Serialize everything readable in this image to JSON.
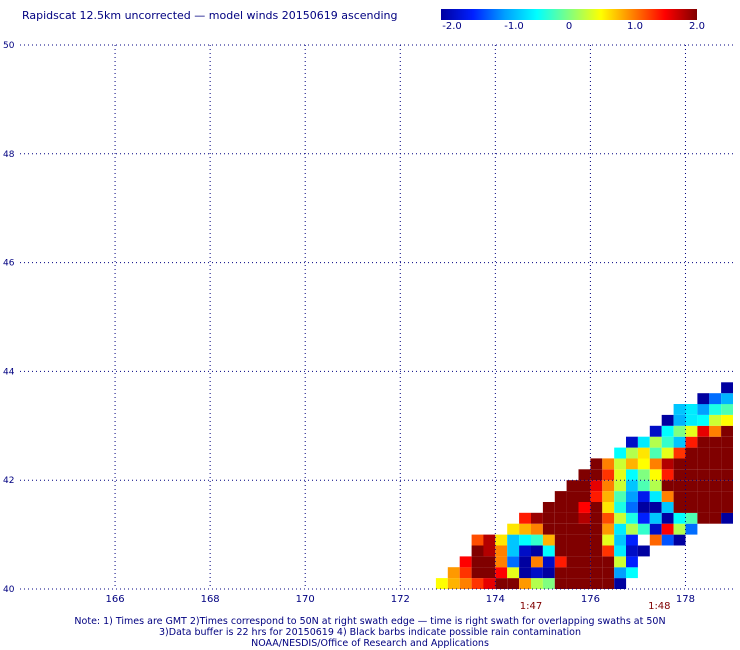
{
  "title": "Rapidscat 12.5km uncorrected — model winds 20150619 ascending",
  "colorbar": {
    "colors": [
      "#0000a0",
      "#0020ff",
      "#00a0ff",
      "#00ffff",
      "#80ff80",
      "#ffff00",
      "#ff8000",
      "#ff0000",
      "#800000"
    ],
    "ticks": [
      "-2.0",
      "-1.0",
      "0",
      "1.0",
      "2.0"
    ]
  },
  "chart_data": {
    "type": "heatmap",
    "title": "Rapidscat 12.5km uncorrected — model winds 20150619 ascending",
    "xlabel": "",
    "ylabel": "",
    "xlim": [
      164.0,
      179.0
    ],
    "ylim": [
      40.0,
      50.0
    ],
    "x_ticks": [
      "166",
      "168",
      "170",
      "172",
      "174",
      "176",
      "178"
    ],
    "y_ticks": [
      "40",
      "42",
      "44",
      "46",
      "48",
      "50"
    ],
    "grid": true,
    "color_range": [
      -2.0,
      2.0
    ],
    "time_labels": [
      {
        "lon": 174.75,
        "text": "1:47"
      },
      {
        "lon": 177.45,
        "text": "1:48"
      }
    ],
    "cells": [
      [
        172.75,
        40.0,
        0.5
      ],
      [
        173.0,
        40.0,
        0.8
      ],
      [
        173.25,
        40.0,
        1.0
      ],
      [
        173.5,
        40.0,
        1.3
      ],
      [
        173.75,
        40.0,
        1.6
      ],
      [
        174.0,
        40.0,
        2.0
      ],
      [
        174.25,
        40.0,
        2.0
      ],
      [
        174.5,
        40.0,
        0.9
      ],
      [
        174.75,
        40.0,
        0.2
      ],
      [
        175.0,
        40.0,
        0.0
      ],
      [
        175.25,
        40.0,
        2.0
      ],
      [
        175.5,
        40.0,
        2.0
      ],
      [
        175.75,
        40.0,
        2.0
      ],
      [
        176.0,
        40.0,
        2.0
      ],
      [
        176.25,
        40.0,
        2.0
      ],
      [
        176.5,
        40.0,
        -2.0
      ],
      [
        173.0,
        40.2,
        0.9
      ],
      [
        173.25,
        40.2,
        1.3
      ],
      [
        173.5,
        40.2,
        2.0
      ],
      [
        173.75,
        40.2,
        2.0
      ],
      [
        174.0,
        40.2,
        1.5
      ],
      [
        174.25,
        40.2,
        0.4
      ],
      [
        174.5,
        40.2,
        -2.0
      ],
      [
        174.75,
        40.2,
        -1.8
      ],
      [
        175.0,
        40.2,
        -2.0
      ],
      [
        175.25,
        40.2,
        2.0
      ],
      [
        175.5,
        40.2,
        2.0
      ],
      [
        175.75,
        40.2,
        2.0
      ],
      [
        176.0,
        40.2,
        2.0
      ],
      [
        176.25,
        40.2,
        2.0
      ],
      [
        176.5,
        40.2,
        -1.0
      ],
      [
        176.75,
        40.2,
        -0.5
      ],
      [
        173.25,
        40.4,
        1.5
      ],
      [
        173.5,
        40.4,
        2.0
      ],
      [
        173.75,
        40.4,
        2.0
      ],
      [
        174.0,
        40.4,
        1.0
      ],
      [
        174.25,
        40.4,
        -1.2
      ],
      [
        174.5,
        40.4,
        -2.0
      ],
      [
        174.75,
        40.4,
        1.0
      ],
      [
        175.0,
        40.4,
        -1.8
      ],
      [
        175.25,
        40.4,
        1.4
      ],
      [
        175.5,
        40.4,
        2.0
      ],
      [
        175.75,
        40.4,
        2.0
      ],
      [
        176.0,
        40.4,
        2.0
      ],
      [
        176.25,
        40.4,
        2.0
      ],
      [
        176.5,
        40.4,
        0.3
      ],
      [
        176.75,
        40.4,
        -1.5
      ],
      [
        173.5,
        40.6,
        2.0
      ],
      [
        173.75,
        40.6,
        1.8
      ],
      [
        174.0,
        40.6,
        1.0
      ],
      [
        174.25,
        40.6,
        -0.8
      ],
      [
        174.5,
        40.6,
        -1.8
      ],
      [
        174.75,
        40.6,
        -2.0
      ],
      [
        175.0,
        40.6,
        -0.5
      ],
      [
        175.25,
        40.6,
        2.0
      ],
      [
        175.5,
        40.6,
        2.0
      ],
      [
        175.75,
        40.6,
        2.0
      ],
      [
        176.0,
        40.6,
        2.0
      ],
      [
        176.25,
        40.6,
        1.3
      ],
      [
        176.5,
        40.6,
        -0.6
      ],
      [
        176.75,
        40.6,
        -1.8
      ],
      [
        177.0,
        40.6,
        -2.0
      ],
      [
        173.5,
        40.8,
        1.2
      ],
      [
        173.75,
        40.8,
        1.8
      ],
      [
        174.0,
        40.8,
        0.6
      ],
      [
        174.25,
        40.8,
        -0.8
      ],
      [
        174.5,
        40.8,
        -0.5
      ],
      [
        174.75,
        40.8,
        -0.3
      ],
      [
        175.0,
        40.8,
        0.8
      ],
      [
        175.25,
        40.8,
        2.0
      ],
      [
        175.5,
        40.8,
        2.0
      ],
      [
        175.75,
        40.8,
        2.0
      ],
      [
        176.0,
        40.8,
        2.0
      ],
      [
        176.25,
        40.8,
        0.4
      ],
      [
        176.5,
        40.8,
        -0.8
      ],
      [
        176.75,
        40.8,
        -1.5
      ],
      [
        177.25,
        40.8,
        1.1
      ],
      [
        177.5,
        40.8,
        -1.3
      ],
      [
        177.75,
        40.8,
        -2.0
      ],
      [
        174.25,
        41.0,
        0.6
      ],
      [
        174.5,
        41.0,
        0.8
      ],
      [
        174.75,
        41.0,
        1.0
      ],
      [
        175.0,
        41.0,
        2.0
      ],
      [
        175.25,
        41.0,
        2.0
      ],
      [
        175.5,
        41.0,
        2.0
      ],
      [
        175.75,
        41.0,
        2.0
      ],
      [
        176.0,
        41.0,
        2.0
      ],
      [
        176.25,
        41.0,
        0.9
      ],
      [
        176.5,
        41.0,
        -0.6
      ],
      [
        176.75,
        41.0,
        0.2
      ],
      [
        177.0,
        41.0,
        -0.3
      ],
      [
        177.25,
        41.0,
        -1.8
      ],
      [
        177.5,
        41.0,
        1.5
      ],
      [
        177.75,
        41.0,
        0.2
      ],
      [
        178.0,
        41.0,
        -1.2
      ],
      [
        174.5,
        41.2,
        1.4
      ],
      [
        174.75,
        41.2,
        1.9
      ],
      [
        175.0,
        41.2,
        2.0
      ],
      [
        175.25,
        41.2,
        2.0
      ],
      [
        175.5,
        41.2,
        2.0
      ],
      [
        175.75,
        41.2,
        1.8
      ],
      [
        176.0,
        41.2,
        2.0
      ],
      [
        176.25,
        41.2,
        1.2
      ],
      [
        176.5,
        41.2,
        0.3
      ],
      [
        176.75,
        41.2,
        -0.4
      ],
      [
        177.0,
        41.2,
        -1.5
      ],
      [
        177.25,
        41.2,
        -0.8
      ],
      [
        177.5,
        41.2,
        -2.0
      ],
      [
        177.75,
        41.2,
        -0.5
      ],
      [
        178.0,
        41.2,
        -0.2
      ],
      [
        178.25,
        41.2,
        2.0
      ],
      [
        178.5,
        41.2,
        2.0
      ],
      [
        178.75,
        41.2,
        -2.0
      ],
      [
        179.0,
        41.2,
        2.0
      ],
      [
        175.0,
        41.4,
        2.0
      ],
      [
        175.25,
        41.4,
        2.0
      ],
      [
        175.5,
        41.4,
        2.0
      ],
      [
        175.75,
        41.4,
        1.5
      ],
      [
        176.0,
        41.4,
        2.0
      ],
      [
        176.25,
        41.4,
        0.6
      ],
      [
        176.5,
        41.4,
        -0.4
      ],
      [
        176.75,
        41.4,
        -1.2
      ],
      [
        177.0,
        41.4,
        -2.0
      ],
      [
        177.25,
        41.4,
        -2.0
      ],
      [
        177.5,
        41.4,
        -0.8
      ],
      [
        177.75,
        41.4,
        2.0
      ],
      [
        178.0,
        41.4,
        2.0
      ],
      [
        178.25,
        41.4,
        2.0
      ],
      [
        178.5,
        41.4,
        2.0
      ],
      [
        178.75,
        41.4,
        2.0
      ],
      [
        179.0,
        41.4,
        2.0
      ],
      [
        175.25,
        41.6,
        2.0
      ],
      [
        175.5,
        41.6,
        2.0
      ],
      [
        175.75,
        41.6,
        2.0
      ],
      [
        176.0,
        41.6,
        1.4
      ],
      [
        176.25,
        41.6,
        0.8
      ],
      [
        176.5,
        41.6,
        -0.2
      ],
      [
        176.75,
        41.6,
        -1.0
      ],
      [
        177.0,
        41.6,
        -1.6
      ],
      [
        177.25,
        41.6,
        -0.6
      ],
      [
        177.5,
        41.6,
        1.0
      ],
      [
        177.75,
        41.6,
        2.0
      ],
      [
        178.0,
        41.6,
        2.0
      ],
      [
        178.25,
        41.6,
        2.0
      ],
      [
        178.5,
        41.6,
        2.0
      ],
      [
        178.75,
        41.6,
        2.0
      ],
      [
        179.0,
        41.6,
        2.0
      ],
      [
        175.5,
        41.8,
        2.0
      ],
      [
        175.75,
        41.8,
        2.0
      ],
      [
        176.0,
        41.8,
        1.6
      ],
      [
        176.25,
        41.8,
        1.0
      ],
      [
        176.5,
        41.8,
        0.3
      ],
      [
        176.75,
        41.8,
        -0.8
      ],
      [
        177.0,
        41.8,
        -0.2
      ],
      [
        177.25,
        41.8,
        0.2
      ],
      [
        177.5,
        41.8,
        2.0
      ],
      [
        177.75,
        41.8,
        2.0
      ],
      [
        178.0,
        41.8,
        2.0
      ],
      [
        178.25,
        41.8,
        2.0
      ],
      [
        178.5,
        41.8,
        2.0
      ],
      [
        178.75,
        41.8,
        2.0
      ],
      [
        179.0,
        41.8,
        2.0
      ],
      [
        175.75,
        42.0,
        2.0
      ],
      [
        176.0,
        42.0,
        2.0
      ],
      [
        176.25,
        42.0,
        1.3
      ],
      [
        176.5,
        42.0,
        0.4
      ],
      [
        176.75,
        42.0,
        -0.5
      ],
      [
        177.0,
        42.0,
        0.0
      ],
      [
        177.25,
        42.0,
        0.5
      ],
      [
        177.5,
        42.0,
        1.4
      ],
      [
        177.75,
        42.0,
        2.0
      ],
      [
        178.0,
        42.0,
        2.0
      ],
      [
        178.25,
        42.0,
        2.0
      ],
      [
        178.5,
        42.0,
        2.0
      ],
      [
        178.75,
        42.0,
        2.0
      ],
      [
        179.0,
        42.0,
        2.0
      ],
      [
        176.0,
        42.2,
        2.0
      ],
      [
        176.25,
        42.2,
        1.0
      ],
      [
        176.5,
        42.2,
        0.3
      ],
      [
        176.75,
        42.2,
        0.8
      ],
      [
        177.0,
        42.2,
        0.5
      ],
      [
        177.25,
        42.2,
        1.0
      ],
      [
        177.5,
        42.2,
        1.8
      ],
      [
        177.75,
        42.2,
        2.0
      ],
      [
        178.0,
        42.2,
        2.0
      ],
      [
        178.25,
        42.2,
        2.0
      ],
      [
        178.5,
        42.2,
        2.0
      ],
      [
        178.75,
        42.2,
        2.0
      ],
      [
        179.0,
        42.2,
        2.0
      ],
      [
        176.5,
        42.4,
        -0.5
      ],
      [
        176.75,
        42.4,
        0.2
      ],
      [
        177.0,
        42.4,
        0.6
      ],
      [
        177.25,
        42.4,
        -0.2
      ],
      [
        177.5,
        42.4,
        0.4
      ],
      [
        177.75,
        42.4,
        1.3
      ],
      [
        178.0,
        42.4,
        2.0
      ],
      [
        178.25,
        42.4,
        2.0
      ],
      [
        178.5,
        42.4,
        2.0
      ],
      [
        178.75,
        42.4,
        2.0
      ],
      [
        179.0,
        42.4,
        2.0
      ],
      [
        176.75,
        42.6,
        -1.8
      ],
      [
        177.0,
        42.6,
        -0.6
      ],
      [
        177.25,
        42.6,
        0.2
      ],
      [
        177.5,
        42.6,
        -0.3
      ],
      [
        177.75,
        42.6,
        -0.8
      ],
      [
        178.0,
        42.6,
        1.4
      ],
      [
        178.25,
        42.6,
        2.0
      ],
      [
        178.5,
        42.6,
        2.0
      ],
      [
        178.75,
        42.6,
        2.0
      ],
      [
        179.0,
        42.6,
        2.0
      ],
      [
        177.25,
        42.8,
        -1.8
      ],
      [
        177.5,
        42.8,
        -0.5
      ],
      [
        177.75,
        42.8,
        0.0
      ],
      [
        178.0,
        42.8,
        0.4
      ],
      [
        178.25,
        42.8,
        1.6
      ],
      [
        178.5,
        42.8,
        1.0
      ],
      [
        178.75,
        42.8,
        2.0
      ],
      [
        179.0,
        42.8,
        2.0
      ],
      [
        177.5,
        43.0,
        -2.0
      ],
      [
        177.75,
        43.0,
        -0.9
      ],
      [
        178.0,
        43.0,
        -0.6
      ],
      [
        178.25,
        43.0,
        -0.5
      ],
      [
        178.5,
        43.0,
        0.3
      ],
      [
        178.75,
        43.0,
        0.5
      ],
      [
        179.0,
        43.0,
        1.1
      ],
      [
        177.75,
        43.2,
        -0.8
      ],
      [
        178.0,
        43.2,
        -0.6
      ],
      [
        178.25,
        43.2,
        -1.0
      ],
      [
        178.5,
        43.2,
        -0.4
      ],
      [
        178.75,
        43.2,
        -0.2
      ],
      [
        179.0,
        43.2,
        -0.6
      ],
      [
        178.25,
        43.4,
        -2.0
      ],
      [
        178.5,
        43.4,
        -1.2
      ],
      [
        178.75,
        43.4,
        -0.9
      ],
      [
        179.0,
        43.4,
        -0.5
      ],
      [
        178.75,
        43.6,
        -2.0
      ],
      [
        179.0,
        43.6,
        -1.6
      ],
      [
        179.0,
        43.8,
        -2.0
      ]
    ]
  },
  "notes": {
    "line1": "Note: 1) Times are GMT 2)Times correspond to 50N at right swath edge — time is right swath for overlapping swaths at 50N",
    "line2": "3)Data buffer is 22 hrs for 20150619 4) Black barbs indicate possible rain contamination",
    "line3": "NOAA/NESDIS/Office of Research and Applications"
  }
}
